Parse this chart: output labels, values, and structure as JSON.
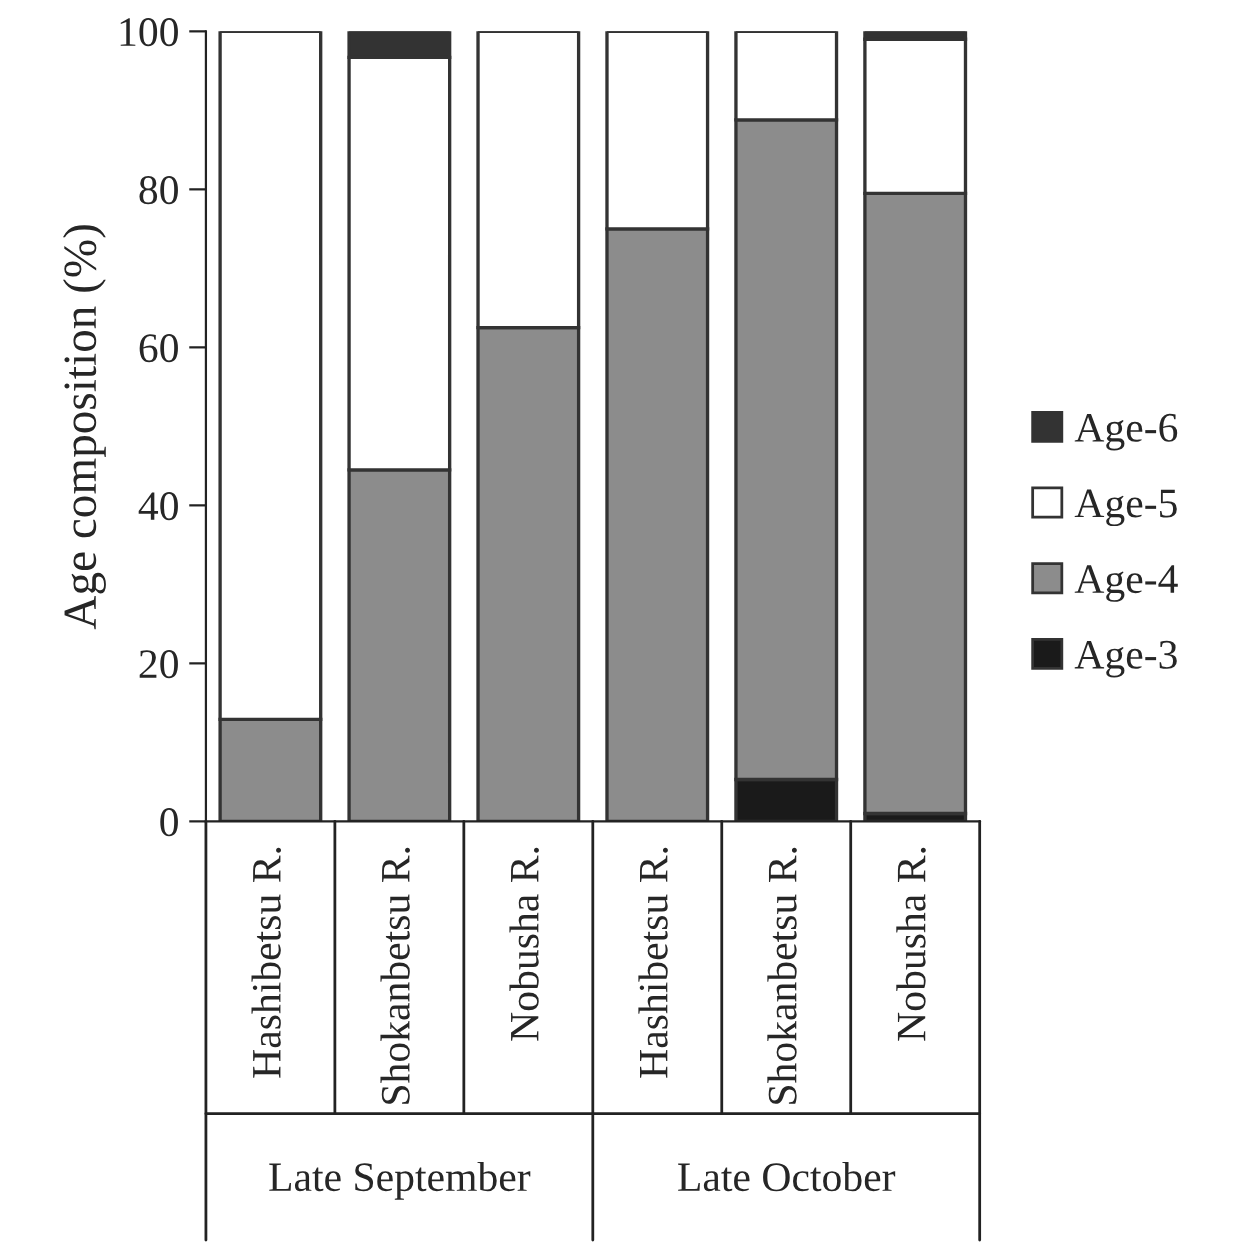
{
  "chart_data": {
    "type": "bar",
    "stacked": true,
    "ylabel": "Age composition (%)",
    "categories": [
      "Hashibetsu R.",
      "Shokanbetsu R.",
      "Nobusha R.",
      "Hashibetsu R.",
      "Shokanbetsu R.",
      "Nobusha R."
    ],
    "series": [
      {
        "name": "Age-3",
        "color": "#1a1a1a",
        "values": [
          0,
          0,
          0,
          0,
          5.3,
          1
        ]
      },
      {
        "name": "Age-4",
        "color": "#8c8c8c",
        "values": [
          12.9,
          44.5,
          62.5,
          75,
          83.5,
          78.5
        ]
      },
      {
        "name": "Age-5",
        "color": "#ffffff",
        "values": [
          87.1,
          52.2,
          37.5,
          25,
          11.2,
          19.5
        ]
      },
      {
        "name": "Age-6",
        "color": "#333333",
        "values": [
          0,
          3.3,
          0,
          0,
          0,
          1
        ]
      }
    ],
    "ylim": [
      0,
      100
    ],
    "yticks": [
      0,
      20,
      40,
      60,
      80,
      100
    ],
    "grid": false,
    "legend": "right",
    "annotations": [
      "Late September",
      "Late October"
    ]
  }
}
